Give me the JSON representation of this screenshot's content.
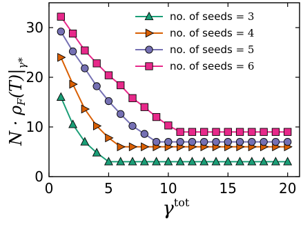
{
  "chart_data": {
    "type": "line",
    "xlabel": "γ^tot",
    "ylabel": "N · ρ_F(T)|γ*",
    "xlim": [
      0,
      21
    ],
    "ylim": [
      0,
      35
    ],
    "xticks": [
      0,
      5,
      10,
      15,
      20
    ],
    "yticks": [
      0,
      10,
      20,
      30
    ],
    "x_tick_labels": [
      "0",
      "5",
      "10",
      "15",
      "20"
    ],
    "y_tick_labels": [
      "0",
      "10",
      "20",
      "30"
    ],
    "grid": false,
    "legend_position": "top-right",
    "x": [
      1,
      2,
      3,
      4,
      5,
      6,
      7,
      8,
      9,
      10,
      11,
      12,
      13,
      14,
      15,
      16,
      17,
      18,
      19,
      20
    ],
    "series": [
      {
        "name": "no. of seeds = 3",
        "name_prefix": "no. of seeds",
        "name_value": "= 3",
        "color": "#1b9e77",
        "marker": "triangle-up",
        "values": [
          16,
          10.5,
          7,
          4.8,
          3,
          3,
          3,
          3,
          3,
          3,
          3,
          3,
          3,
          3,
          3,
          3,
          3,
          3,
          3,
          3
        ]
      },
      {
        "name": "no. of seeds = 4",
        "name_prefix": "no. of seeds",
        "name_value": "= 4",
        "color": "#d95f02",
        "marker": "triangle-right",
        "values": [
          24,
          18.6,
          13.6,
          10.2,
          7.8,
          6,
          6,
          6,
          6,
          6,
          6,
          6,
          6,
          6,
          6,
          6,
          6,
          6,
          6,
          6
        ]
      },
      {
        "name": "no. of seeds = 5",
        "name_prefix": "no. of seeds",
        "name_value": "= 5",
        "color": "#7570b3",
        "marker": "circle",
        "values": [
          29.2,
          25.2,
          21.8,
          18.2,
          15.2,
          12.6,
          10.2,
          8.6,
          7,
          7,
          7,
          7,
          7,
          7,
          7,
          7,
          7,
          7,
          7,
          7
        ]
      },
      {
        "name": "no. of seeds = 6",
        "name_prefix": "no. of seeds",
        "name_value": "= 6",
        "color": "#e7298a",
        "marker": "square",
        "values": [
          32.2,
          28.8,
          25.4,
          22.8,
          20.4,
          18.4,
          15.8,
          14,
          12,
          10.3,
          9,
          9,
          9,
          9,
          9,
          9,
          9,
          9,
          9,
          9
        ]
      }
    ]
  }
}
